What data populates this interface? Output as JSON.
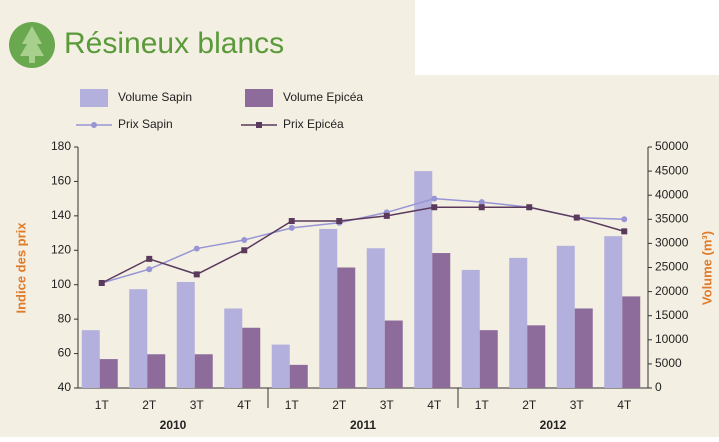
{
  "chart_data": {
    "type": "bar-line",
    "title": "Résineux blancs",
    "ylabel": "Indice des prix",
    "y2label": "Volume (m³)",
    "categories": [
      "1T",
      "2T",
      "3T",
      "4T",
      "1T",
      "2T",
      "3T",
      "4T",
      "1T",
      "2T",
      "3T",
      "4T"
    ],
    "groups": [
      "2010",
      "2011",
      "2012"
    ],
    "ylim": [
      40,
      180
    ],
    "yticks": [
      40,
      60,
      80,
      100,
      120,
      140,
      160,
      180
    ],
    "y2lim": [
      0,
      50000
    ],
    "y2ticks": [
      0,
      5000,
      10000,
      15000,
      20000,
      25000,
      30000,
      35000,
      40000,
      45000,
      50000
    ],
    "series": [
      {
        "name": "Volume Sapin",
        "type": "bar",
        "axis": "y2",
        "color": "#b3b0de",
        "values": [
          12000,
          20500,
          22000,
          16500,
          9000,
          33000,
          29000,
          45000,
          24500,
          27000,
          29500,
          31500
        ]
      },
      {
        "name": "Volume Epicéa",
        "type": "bar",
        "axis": "y2",
        "color": "#8d6c9c",
        "values": [
          6000,
          7000,
          7000,
          12500,
          4800,
          25000,
          14000,
          28000,
          12000,
          13000,
          16500,
          19000
        ]
      },
      {
        "name": "Prix Sapin",
        "type": "line",
        "marker": "circle",
        "color": "#9895d6",
        "values": [
          101,
          109,
          121,
          126,
          133,
          136,
          142,
          150,
          148,
          145,
          139,
          138
        ]
      },
      {
        "name": "Prix Epicéa",
        "type": "line",
        "marker": "square",
        "color": "#5a3a5c",
        "values": [
          101,
          115,
          106,
          120,
          137,
          137,
          140,
          145,
          145,
          145,
          139,
          131
        ]
      }
    ]
  }
}
